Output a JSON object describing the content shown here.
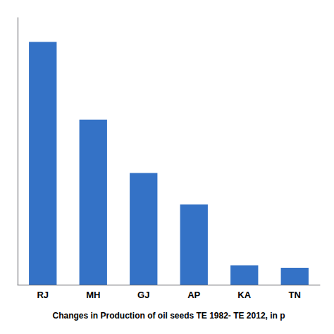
{
  "chart_data": {
    "type": "bar",
    "xlabel": "Changes in Production of oil seeds TE 1982- TE 2012, in p",
    "categories": [
      "RJ",
      "MH",
      "GJ",
      "AP",
      "KA",
      "TN"
    ],
    "values": [
      100,
      68,
      46,
      33,
      8,
      7
    ],
    "color": "#3472C6",
    "ylim": [
      0,
      110
    ],
    "yticks": [],
    "grid": false,
    "tick_labels": "x"
  }
}
